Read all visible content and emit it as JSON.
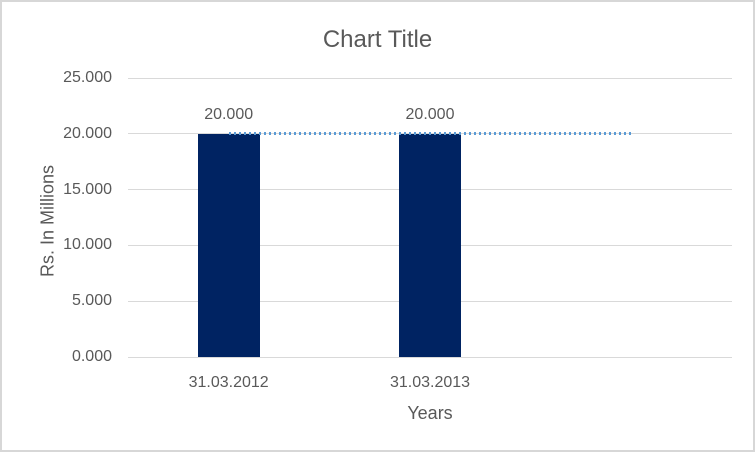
{
  "chart_data": {
    "type": "bar",
    "title": "Chart Title",
    "xlabel": "Years",
    "ylabel": "Rs. In Millions",
    "categories": [
      "31.03.2012",
      "31.03.2013",
      ""
    ],
    "series": [
      {
        "name": "bar-series",
        "type": "bar",
        "values": [
          20.0,
          20.0,
          null
        ],
        "data_labels": [
          "20.000",
          "20.000",
          ""
        ],
        "color": "#002362"
      },
      {
        "name": "line-series",
        "type": "dotted-line",
        "values": [
          20.0,
          20.0,
          20.0
        ],
        "color": "#5B9BD5"
      }
    ],
    "ylim": [
      0,
      25
    ],
    "yticks": [
      {
        "value": 0,
        "label": "0.000"
      },
      {
        "value": 5,
        "label": "5.000"
      },
      {
        "value": 10,
        "label": "10.000"
      },
      {
        "value": 15,
        "label": "15.000"
      },
      {
        "value": 20,
        "label": "20.000"
      },
      {
        "value": 25,
        "label": "25.000"
      }
    ],
    "grid": true,
    "legend": "none",
    "colors": {
      "text": "#595959",
      "gridline": "#D9D9D9",
      "axis_line": "#D9D9D9",
      "background": "#FFFFFF",
      "border": "#D7D7D7"
    }
  }
}
